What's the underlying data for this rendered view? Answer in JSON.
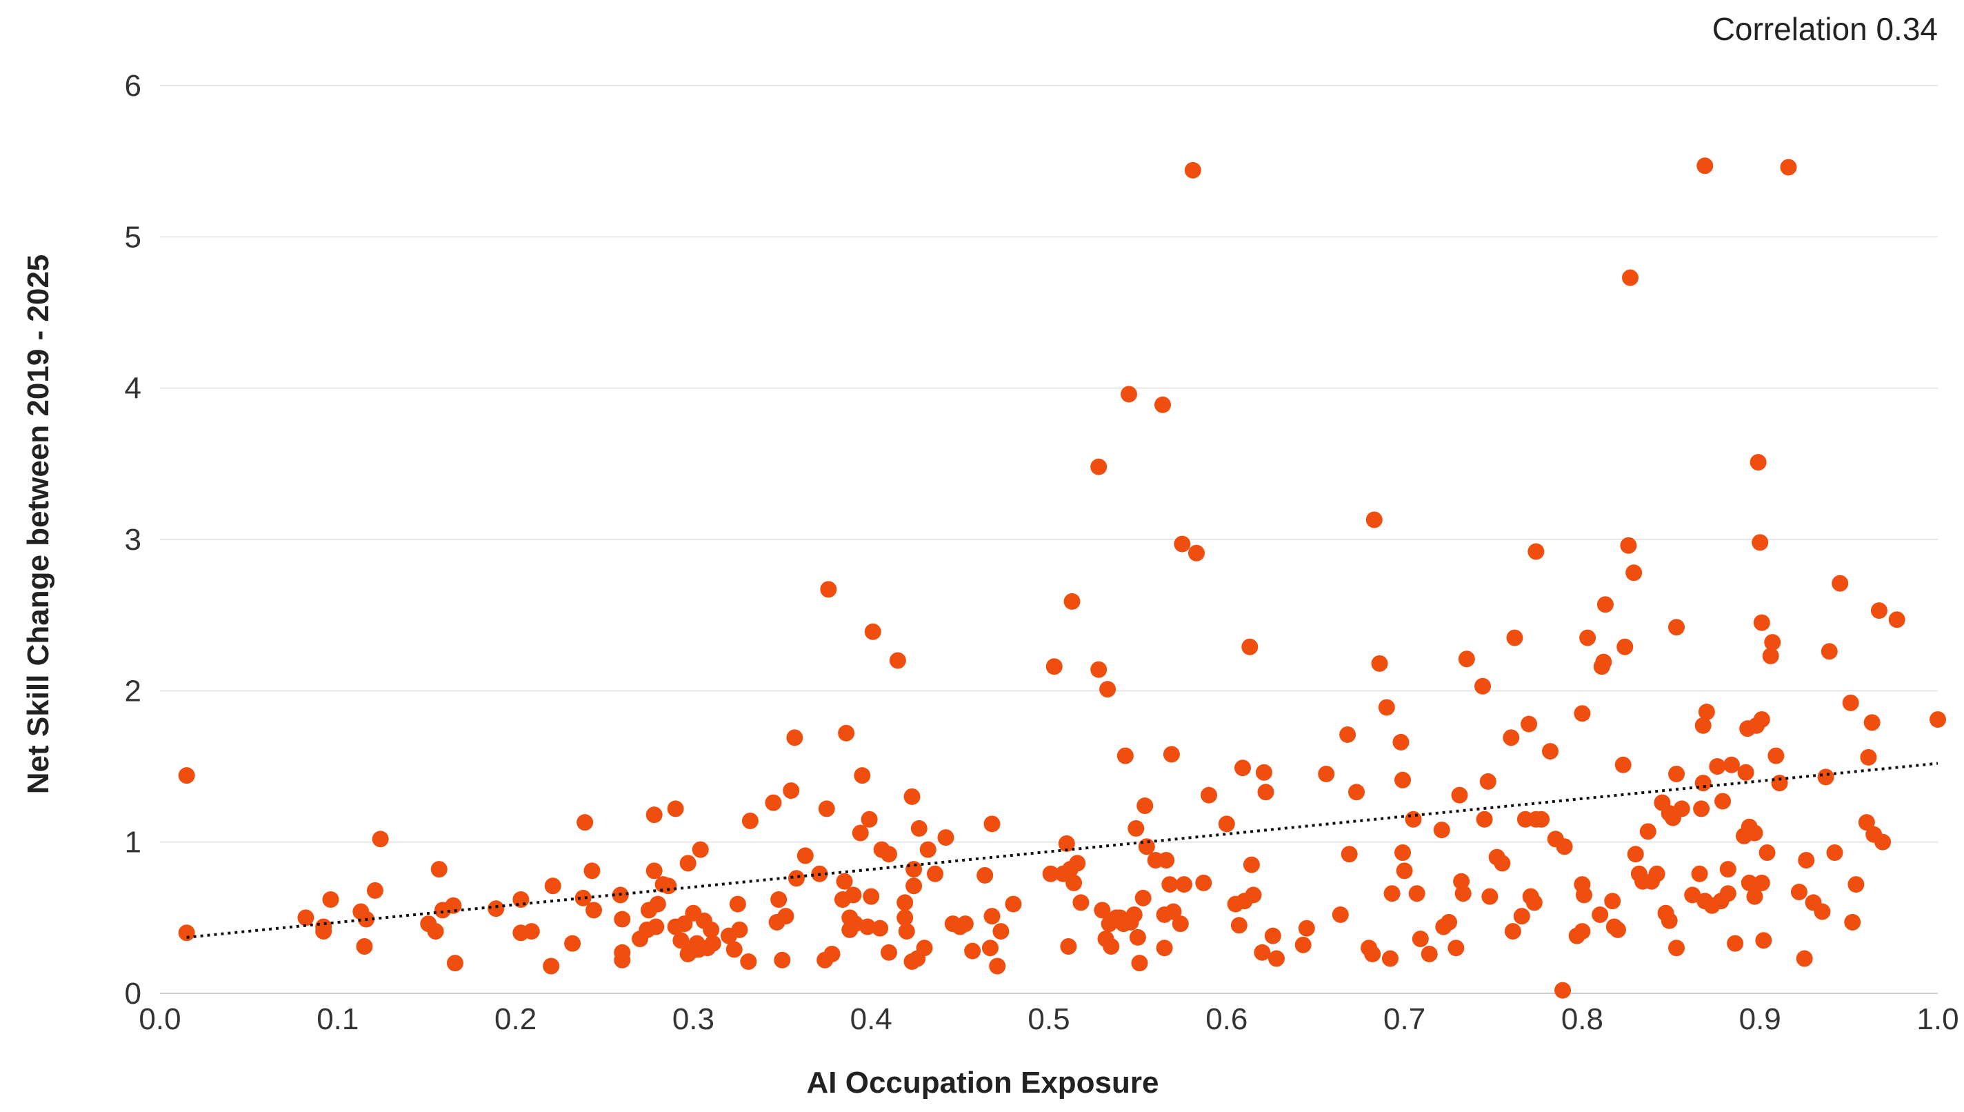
{
  "chart_data": {
    "type": "scatter",
    "title": "",
    "xlabel": "AI Occupation Exposure",
    "ylabel": "Net Skill Change between 2019 - 2025",
    "annotation": "Correlation 0.34",
    "xlim": [
      0,
      1
    ],
    "ylim": [
      0,
      6
    ],
    "xticks": [
      "0.0",
      "0.1",
      "0.2",
      "0.3",
      "0.4",
      "0.5",
      "0.6",
      "0.7",
      "0.8",
      "0.9",
      "1.0"
    ],
    "yticks": [
      "0",
      "1",
      "2",
      "3",
      "4",
      "5",
      "6"
    ],
    "grid": "horizontal",
    "point_color": "#F04E0E",
    "trendline": {
      "style": "dotted",
      "color": "#111111",
      "x": [
        0.015,
        1.0
      ],
      "y": [
        0.37,
        1.52
      ]
    },
    "points": [
      [
        0.015,
        1.44
      ],
      [
        0.015,
        0.4
      ],
      [
        0.082,
        0.5
      ],
      [
        0.092,
        0.44
      ],
      [
        0.092,
        0.41
      ],
      [
        0.096,
        0.62
      ],
      [
        0.113,
        0.54
      ],
      [
        0.115,
        0.31
      ],
      [
        0.116,
        0.49
      ],
      [
        0.121,
        0.68
      ],
      [
        0.124,
        1.02
      ],
      [
        0.151,
        0.46
      ],
      [
        0.155,
        0.41
      ],
      [
        0.157,
        0.82
      ],
      [
        0.159,
        0.55
      ],
      [
        0.165,
        0.58
      ],
      [
        0.166,
        0.2
      ],
      [
        0.189,
        0.56
      ],
      [
        0.203,
        0.62
      ],
      [
        0.203,
        0.4
      ],
      [
        0.209,
        0.41
      ],
      [
        0.22,
        0.18
      ],
      [
        0.221,
        0.71
      ],
      [
        0.232,
        0.33
      ],
      [
        0.238,
        0.63
      ],
      [
        0.239,
        1.13
      ],
      [
        0.243,
        0.81
      ],
      [
        0.244,
        0.55
      ],
      [
        0.259,
        0.65
      ],
      [
        0.26,
        0.49
      ],
      [
        0.26,
        0.27
      ],
      [
        0.26,
        0.22
      ],
      [
        0.27,
        0.36
      ],
      [
        0.274,
        0.42
      ],
      [
        0.275,
        0.55
      ],
      [
        0.278,
        0.81
      ],
      [
        0.278,
        1.18
      ],
      [
        0.279,
        0.44
      ],
      [
        0.28,
        0.59
      ],
      [
        0.283,
        0.72
      ],
      [
        0.286,
        0.71
      ],
      [
        0.29,
        1.22
      ],
      [
        0.29,
        0.44
      ],
      [
        0.293,
        0.35
      ],
      [
        0.295,
        0.46
      ],
      [
        0.297,
        0.86
      ],
      [
        0.297,
        0.26
      ],
      [
        0.299,
        0.28
      ],
      [
        0.3,
        0.53
      ],
      [
        0.302,
        0.33
      ],
      [
        0.303,
        0.29
      ],
      [
        0.304,
        0.95
      ],
      [
        0.306,
        0.48
      ],
      [
        0.308,
        0.3
      ],
      [
        0.31,
        0.42
      ],
      [
        0.311,
        0.33
      ],
      [
        0.32,
        0.38
      ],
      [
        0.323,
        0.29
      ],
      [
        0.325,
        0.59
      ],
      [
        0.326,
        0.42
      ],
      [
        0.331,
        0.21
      ],
      [
        0.332,
        1.14
      ],
      [
        0.345,
        1.26
      ],
      [
        0.347,
        0.47
      ],
      [
        0.348,
        0.62
      ],
      [
        0.35,
        0.22
      ],
      [
        0.352,
        0.51
      ],
      [
        0.355,
        1.34
      ],
      [
        0.357,
        1.69
      ],
      [
        0.358,
        0.76
      ],
      [
        0.363,
        0.91
      ],
      [
        0.371,
        0.79
      ],
      [
        0.374,
        0.22
      ],
      [
        0.375,
        1.22
      ],
      [
        0.376,
        2.67
      ],
      [
        0.378,
        0.26
      ],
      [
        0.384,
        0.62
      ],
      [
        0.385,
        0.74
      ],
      [
        0.386,
        1.72
      ],
      [
        0.388,
        0.5
      ],
      [
        0.388,
        0.42
      ],
      [
        0.39,
        0.65
      ],
      [
        0.391,
        0.46
      ],
      [
        0.394,
        1.06
      ],
      [
        0.395,
        1.44
      ],
      [
        0.398,
        0.44
      ],
      [
        0.399,
        1.15
      ],
      [
        0.4,
        0.64
      ],
      [
        0.401,
        2.39
      ],
      [
        0.405,
        0.43
      ],
      [
        0.406,
        0.95
      ],
      [
        0.41,
        0.92
      ],
      [
        0.41,
        0.27
      ],
      [
        0.415,
        2.2
      ],
      [
        0.419,
        0.5
      ],
      [
        0.419,
        0.6
      ],
      [
        0.42,
        0.41
      ],
      [
        0.423,
        1.3
      ],
      [
        0.423,
        0.21
      ],
      [
        0.424,
        0.82
      ],
      [
        0.424,
        0.71
      ],
      [
        0.426,
        0.23
      ],
      [
        0.427,
        1.09
      ],
      [
        0.43,
        0.3
      ],
      [
        0.432,
        0.95
      ],
      [
        0.436,
        0.79
      ],
      [
        0.442,
        1.03
      ],
      [
        0.446,
        0.46
      ],
      [
        0.45,
        0.44
      ],
      [
        0.453,
        0.46
      ],
      [
        0.457,
        0.28
      ],
      [
        0.464,
        0.78
      ],
      [
        0.467,
        0.3
      ],
      [
        0.468,
        0.51
      ],
      [
        0.468,
        1.12
      ],
      [
        0.471,
        0.18
      ],
      [
        0.473,
        0.41
      ],
      [
        0.48,
        0.59
      ],
      [
        0.501,
        0.79
      ],
      [
        0.503,
        2.16
      ],
      [
        0.508,
        0.79
      ],
      [
        0.51,
        0.99
      ],
      [
        0.511,
        0.31
      ],
      [
        0.512,
        0.82
      ],
      [
        0.513,
        2.59
      ],
      [
        0.514,
        0.73
      ],
      [
        0.516,
        0.86
      ],
      [
        0.518,
        0.6
      ],
      [
        0.528,
        2.14
      ],
      [
        0.528,
        3.48
      ],
      [
        0.53,
        0.55
      ],
      [
        0.532,
        0.36
      ],
      [
        0.533,
        2.01
      ],
      [
        0.534,
        0.46
      ],
      [
        0.535,
        0.31
      ],
      [
        0.538,
        0.5
      ],
      [
        0.54,
        0.5
      ],
      [
        0.542,
        0.46
      ],
      [
        0.543,
        1.57
      ],
      [
        0.545,
        3.96
      ],
      [
        0.546,
        0.47
      ],
      [
        0.548,
        0.52
      ],
      [
        0.549,
        1.09
      ],
      [
        0.55,
        0.37
      ],
      [
        0.551,
        0.2
      ],
      [
        0.553,
        0.63
      ],
      [
        0.554,
        1.24
      ],
      [
        0.555,
        0.97
      ],
      [
        0.56,
        0.88
      ],
      [
        0.564,
        3.89
      ],
      [
        0.565,
        0.52
      ],
      [
        0.565,
        0.3
      ],
      [
        0.566,
        0.88
      ],
      [
        0.568,
        0.72
      ],
      [
        0.569,
        1.58
      ],
      [
        0.57,
        0.54
      ],
      [
        0.574,
        0.46
      ],
      [
        0.575,
        2.97
      ],
      [
        0.576,
        0.72
      ],
      [
        0.581,
        5.44
      ],
      [
        0.583,
        2.91
      ],
      [
        0.587,
        0.73
      ],
      [
        0.59,
        1.31
      ],
      [
        0.6,
        1.12
      ],
      [
        0.605,
        0.59
      ],
      [
        0.607,
        0.45
      ],
      [
        0.609,
        1.49
      ],
      [
        0.61,
        0.61
      ],
      [
        0.613,
        2.29
      ],
      [
        0.614,
        0.85
      ],
      [
        0.615,
        0.65
      ],
      [
        0.62,
        0.27
      ],
      [
        0.621,
        1.46
      ],
      [
        0.622,
        1.33
      ],
      [
        0.626,
        0.38
      ],
      [
        0.628,
        0.23
      ],
      [
        0.643,
        0.32
      ],
      [
        0.645,
        0.43
      ],
      [
        0.656,
        1.45
      ],
      [
        0.664,
        0.52
      ],
      [
        0.668,
        1.71
      ],
      [
        0.669,
        0.92
      ],
      [
        0.673,
        1.33
      ],
      [
        0.68,
        0.3
      ],
      [
        0.682,
        0.26
      ],
      [
        0.683,
        3.13
      ],
      [
        0.686,
        2.18
      ],
      [
        0.69,
        1.89
      ],
      [
        0.692,
        0.23
      ],
      [
        0.693,
        0.66
      ],
      [
        0.698,
        1.66
      ],
      [
        0.699,
        0.93
      ],
      [
        0.699,
        1.41
      ],
      [
        0.7,
        0.81
      ],
      [
        0.705,
        1.15
      ],
      [
        0.707,
        0.66
      ],
      [
        0.709,
        0.36
      ],
      [
        0.714,
        0.26
      ],
      [
        0.721,
        1.08
      ],
      [
        0.722,
        0.44
      ],
      [
        0.725,
        0.47
      ],
      [
        0.729,
        0.3
      ],
      [
        0.731,
        1.31
      ],
      [
        0.732,
        0.74
      ],
      [
        0.733,
        0.66
      ],
      [
        0.735,
        2.21
      ],
      [
        0.744,
        2.03
      ],
      [
        0.745,
        1.15
      ],
      [
        0.747,
        1.4
      ],
      [
        0.748,
        0.64
      ],
      [
        0.752,
        0.9
      ],
      [
        0.755,
        0.86
      ],
      [
        0.76,
        1.69
      ],
      [
        0.761,
        0.41
      ],
      [
        0.762,
        2.35
      ],
      [
        0.766,
        0.51
      ],
      [
        0.768,
        1.15
      ],
      [
        0.771,
        0.64
      ],
      [
        0.77,
        1.78
      ],
      [
        0.773,
        0.6
      ],
      [
        0.774,
        1.15
      ],
      [
        0.774,
        2.92
      ],
      [
        0.777,
        1.15
      ],
      [
        0.782,
        1.6
      ],
      [
        0.785,
        1.02
      ],
      [
        0.789,
        0.02
      ],
      [
        0.79,
        0.97
      ],
      [
        0.797,
        0.38
      ],
      [
        0.8,
        0.41
      ],
      [
        0.8,
        0.72
      ],
      [
        0.8,
        1.85
      ],
      [
        0.801,
        0.65
      ],
      [
        0.803,
        2.35
      ],
      [
        0.81,
        0.52
      ],
      [
        0.811,
        2.16
      ],
      [
        0.812,
        2.19
      ],
      [
        0.813,
        2.57
      ],
      [
        0.817,
        0.61
      ],
      [
        0.818,
        0.44
      ],
      [
        0.82,
        0.42
      ],
      [
        0.823,
        1.51
      ],
      [
        0.824,
        2.29
      ],
      [
        0.826,
        2.96
      ],
      [
        0.827,
        4.73
      ],
      [
        0.829,
        2.78
      ],
      [
        0.83,
        0.92
      ],
      [
        0.832,
        0.79
      ],
      [
        0.834,
        0.74
      ],
      [
        0.837,
        1.07
      ],
      [
        0.839,
        0.74
      ],
      [
        0.842,
        0.79
      ],
      [
        0.845,
        1.26
      ],
      [
        0.847,
        0.53
      ],
      [
        0.849,
        0.48
      ],
      [
        0.849,
        1.19
      ],
      [
        0.851,
        1.16
      ],
      [
        0.853,
        0.3
      ],
      [
        0.853,
        2.42
      ],
      [
        0.853,
        1.45
      ],
      [
        0.856,
        1.22
      ],
      [
        0.862,
        0.65
      ],
      [
        0.866,
        0.79
      ],
      [
        0.867,
        1.22
      ],
      [
        0.868,
        1.39
      ],
      [
        0.868,
        1.77
      ],
      [
        0.869,
        0.61
      ],
      [
        0.869,
        5.47
      ],
      [
        0.87,
        1.86
      ],
      [
        0.873,
        0.58
      ],
      [
        0.876,
        1.5
      ],
      [
        0.878,
        0.61
      ],
      [
        0.879,
        1.27
      ],
      [
        0.882,
        0.66
      ],
      [
        0.882,
        0.82
      ],
      [
        0.884,
        1.51
      ],
      [
        0.886,
        0.33
      ],
      [
        0.891,
        1.04
      ],
      [
        0.892,
        1.46
      ],
      [
        0.893,
        1.75
      ],
      [
        0.894,
        1.1
      ],
      [
        0.894,
        0.73
      ],
      [
        0.897,
        1.06
      ],
      [
        0.897,
        0.64
      ],
      [
        0.898,
        1.77
      ],
      [
        0.899,
        3.51
      ],
      [
        0.9,
        2.98
      ],
      [
        0.901,
        1.81
      ],
      [
        0.901,
        2.45
      ],
      [
        0.901,
        0.73
      ],
      [
        0.902,
        0.35
      ],
      [
        0.904,
        0.93
      ],
      [
        0.906,
        2.23
      ],
      [
        0.907,
        2.32
      ],
      [
        0.909,
        1.57
      ],
      [
        0.911,
        1.39
      ],
      [
        0.916,
        5.46
      ],
      [
        0.922,
        0.67
      ],
      [
        0.925,
        0.23
      ],
      [
        0.926,
        0.88
      ],
      [
        0.93,
        0.6
      ],
      [
        0.935,
        0.54
      ],
      [
        0.937,
        1.43
      ],
      [
        0.939,
        2.26
      ],
      [
        0.942,
        0.93
      ],
      [
        0.945,
        2.71
      ],
      [
        0.951,
        1.92
      ],
      [
        0.952,
        0.47
      ],
      [
        0.954,
        0.72
      ],
      [
        0.96,
        1.13
      ],
      [
        0.961,
        1.56
      ],
      [
        0.963,
        1.79
      ],
      [
        0.964,
        1.05
      ],
      [
        0.967,
        2.53
      ],
      [
        0.969,
        1.0
      ],
      [
        0.977,
        2.47
      ],
      [
        1.0,
        1.81
      ]
    ]
  }
}
